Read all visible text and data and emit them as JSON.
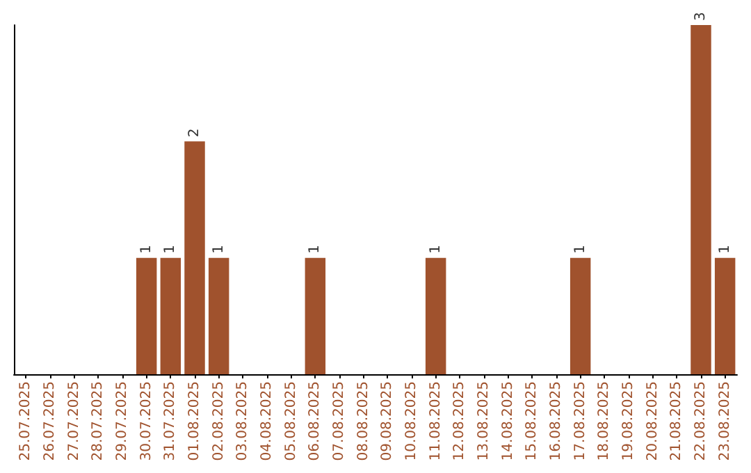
{
  "chart_data": {
    "type": "bar",
    "categories": [
      "25.07.2025",
      "26.07.2025",
      "27.07.2025",
      "28.07.2025",
      "29.07.2025",
      "30.07.2025",
      "31.07.2025",
      "01.08.2025",
      "02.08.2025",
      "03.08.2025",
      "04.08.2025",
      "05.08.2025",
      "06.08.2025",
      "07.08.2025",
      "08.08.2025",
      "09.08.2025",
      "10.08.2025",
      "11.08.2025",
      "12.08.2025",
      "13.08.2025",
      "14.08.2025",
      "15.08.2025",
      "16.08.2025",
      "17.08.2025",
      "18.08.2025",
      "19.08.2025",
      "20.08.2025",
      "21.08.2025",
      "22.08.2025",
      "23.08.2025"
    ],
    "values": [
      0,
      0,
      0,
      0,
      0,
      1,
      1,
      2,
      1,
      0,
      0,
      0,
      1,
      0,
      0,
      0,
      0,
      1,
      0,
      0,
      0,
      0,
      0,
      1,
      0,
      0,
      0,
      0,
      3,
      1
    ],
    "value_labels": [
      null,
      null,
      null,
      null,
      null,
      "1",
      "1",
      "2",
      "1",
      null,
      null,
      null,
      "1",
      null,
      null,
      null,
      null,
      "1",
      null,
      null,
      null,
      null,
      null,
      "1",
      null,
      null,
      null,
      null,
      "3",
      "1"
    ],
    "color": "#a0522d",
    "tick_labels": "x"
  }
}
